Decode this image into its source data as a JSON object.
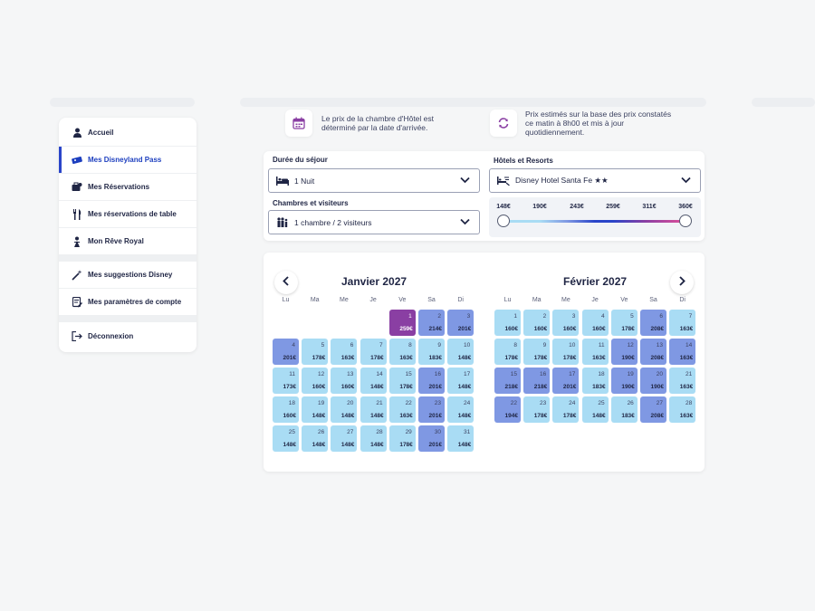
{
  "sidebar": {
    "items": [
      {
        "label": "Accueil",
        "icon": "user-icon"
      },
      {
        "label": "Mes Disneyland Pass",
        "icon": "ticket-icon",
        "active": true
      },
      {
        "label": "Mes Réservations",
        "icon": "suitcase-icon"
      },
      {
        "label": "Mes réservations de table",
        "icon": "cutlery-icon"
      },
      {
        "label": "Mon Rêve Royal",
        "icon": "princess-icon"
      },
      {
        "label": "Mes suggestions Disney",
        "icon": "magic-wand-icon"
      },
      {
        "label": "Mes paramètres de compte",
        "icon": "settings-form-icon"
      },
      {
        "label": "Déconnexion",
        "icon": "logout-icon"
      }
    ]
  },
  "info": {
    "arrival": {
      "icon": "calendar-icon",
      "line1": "Le prix de la chambre d'Hôtel est",
      "line2": "déterminé par la date d'arrivée."
    },
    "estimate": {
      "icon": "refresh-icon",
      "line1": "Prix estimés sur la base des prix constatés",
      "line2": "ce matin à 8h00 et mis à jour",
      "line3": "quotidiennement."
    }
  },
  "filters": {
    "duration": {
      "label": "Durée du séjour",
      "value": "1 Nuit",
      "icon": "bed-icon"
    },
    "rooms": {
      "label": "Chambres et visiteurs",
      "value": "1 chambre / 2 visiteurs",
      "icon": "people-icon"
    },
    "hotels": {
      "label": "Hôtels et Resorts",
      "value": "Disney Hotel Santa Fe ★★",
      "icon": "hotel-icon"
    },
    "price_ticks": [
      "148€",
      "190€",
      "243€",
      "259€",
      "311€",
      "360€"
    ],
    "price_range": {
      "min": "148€",
      "max": "360€"
    }
  },
  "colors": {
    "accent": "#2a45c9",
    "tier_low": "#a9dcf4",
    "tier_mid": "#7f98e3",
    "tier_high": "#8a3fa3"
  },
  "weekdays": [
    "Lu",
    "Ma",
    "Me",
    "Je",
    "Ve",
    "Sa",
    "Di"
  ],
  "calendar": {
    "months": [
      {
        "title": "Janvier 2027",
        "offset": 4,
        "days": [
          {
            "d": "1",
            "p": "259€",
            "t": 3
          },
          {
            "d": "2",
            "p": "214€",
            "t": 2
          },
          {
            "d": "3",
            "p": "201€",
            "t": 2
          },
          {
            "d": "4",
            "p": "201€",
            "t": 2
          },
          {
            "d": "5",
            "p": "178€",
            "t": 1
          },
          {
            "d": "6",
            "p": "163€",
            "t": 1
          },
          {
            "d": "7",
            "p": "178€",
            "t": 1
          },
          {
            "d": "8",
            "p": "163€",
            "t": 1
          },
          {
            "d": "9",
            "p": "183€",
            "t": 1
          },
          {
            "d": "10",
            "p": "148€",
            "t": 1
          },
          {
            "d": "11",
            "p": "173€",
            "t": 1
          },
          {
            "d": "12",
            "p": "160€",
            "t": 1
          },
          {
            "d": "13",
            "p": "160€",
            "t": 1
          },
          {
            "d": "14",
            "p": "148€",
            "t": 1
          },
          {
            "d": "15",
            "p": "178€",
            "t": 1
          },
          {
            "d": "16",
            "p": "201€",
            "t": 2
          },
          {
            "d": "17",
            "p": "148€",
            "t": 1
          },
          {
            "d": "18",
            "p": "160€",
            "t": 1
          },
          {
            "d": "19",
            "p": "148€",
            "t": 1
          },
          {
            "d": "20",
            "p": "148€",
            "t": 1
          },
          {
            "d": "21",
            "p": "148€",
            "t": 1
          },
          {
            "d": "22",
            "p": "163€",
            "t": 1
          },
          {
            "d": "23",
            "p": "201€",
            "t": 2
          },
          {
            "d": "24",
            "p": "148€",
            "t": 1
          },
          {
            "d": "25",
            "p": "148€",
            "t": 1
          },
          {
            "d": "26",
            "p": "148€",
            "t": 1
          },
          {
            "d": "27",
            "p": "148€",
            "t": 1
          },
          {
            "d": "28",
            "p": "148€",
            "t": 1
          },
          {
            "d": "29",
            "p": "178€",
            "t": 1
          },
          {
            "d": "30",
            "p": "201€",
            "t": 2
          },
          {
            "d": "31",
            "p": "148€",
            "t": 1
          }
        ]
      },
      {
        "title": "Février 2027",
        "offset": 0,
        "days": [
          {
            "d": "1",
            "p": "160€",
            "t": 1
          },
          {
            "d": "2",
            "p": "160€",
            "t": 1
          },
          {
            "d": "3",
            "p": "160€",
            "t": 1
          },
          {
            "d": "4",
            "p": "160€",
            "t": 1
          },
          {
            "d": "5",
            "p": "178€",
            "t": 1
          },
          {
            "d": "6",
            "p": "208€",
            "t": 2
          },
          {
            "d": "7",
            "p": "163€",
            "t": 1
          },
          {
            "d": "8",
            "p": "178€",
            "t": 1
          },
          {
            "d": "9",
            "p": "178€",
            "t": 1
          },
          {
            "d": "10",
            "p": "178€",
            "t": 1
          },
          {
            "d": "11",
            "p": "163€",
            "t": 1
          },
          {
            "d": "12",
            "p": "190€",
            "t": 2
          },
          {
            "d": "13",
            "p": "208€",
            "t": 2
          },
          {
            "d": "14",
            "p": "163€",
            "t": 2
          },
          {
            "d": "15",
            "p": "218€",
            "t": 2
          },
          {
            "d": "16",
            "p": "218€",
            "t": 2
          },
          {
            "d": "17",
            "p": "201€",
            "t": 2
          },
          {
            "d": "18",
            "p": "183€",
            "t": 1
          },
          {
            "d": "19",
            "p": "190€",
            "t": 2
          },
          {
            "d": "20",
            "p": "190€",
            "t": 2
          },
          {
            "d": "21",
            "p": "163€",
            "t": 1
          },
          {
            "d": "22",
            "p": "194€",
            "t": 2
          },
          {
            "d": "23",
            "p": "178€",
            "t": 1
          },
          {
            "d": "24",
            "p": "178€",
            "t": 1
          },
          {
            "d": "25",
            "p": "148€",
            "t": 1
          },
          {
            "d": "26",
            "p": "183€",
            "t": 1
          },
          {
            "d": "27",
            "p": "208€",
            "t": 2
          },
          {
            "d": "28",
            "p": "163€",
            "t": 1
          }
        ]
      }
    ]
  }
}
